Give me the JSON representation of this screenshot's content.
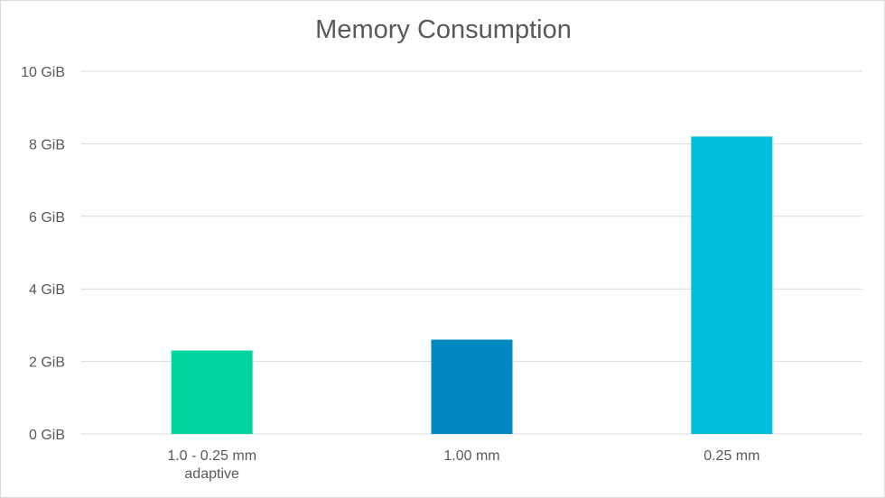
{
  "chart_data": {
    "type": "bar",
    "title": "Memory Consumption",
    "categories": [
      [
        "1.0 - 0.25 mm",
        "adaptive"
      ],
      [
        "1.00 mm"
      ],
      [
        "0.25 mm"
      ]
    ],
    "values": [
      2.3,
      2.6,
      8.2
    ],
    "colors": [
      "#00d59f",
      "#0087bf",
      "#00bedc"
    ],
    "unit": "GiB",
    "ylim": [
      0,
      10
    ],
    "yticks": [
      "0 GiB",
      "2 GiB",
      "4 GiB",
      "6 GiB",
      "8 GiB",
      "10 GiB"
    ],
    "ytick_values": [
      0,
      2,
      4,
      6,
      8,
      10
    ],
    "grid": true,
    "legend": "none",
    "xlabel": "",
    "ylabel": ""
  }
}
